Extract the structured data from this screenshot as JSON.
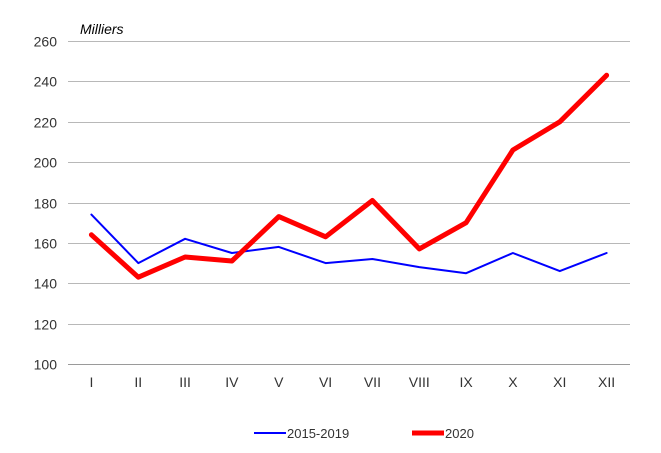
{
  "chart_data": {
    "type": "line",
    "unit_label": "Milliers",
    "categories": [
      "I",
      "II",
      "III",
      "IV",
      "V",
      "VI",
      "VII",
      "VIII",
      "IX",
      "X",
      "XI",
      "XII"
    ],
    "yticks": [
      100,
      120,
      140,
      160,
      180,
      200,
      220,
      240,
      260
    ],
    "ylim": [
      100,
      260
    ],
    "grid": true,
    "legend_position": "bottom",
    "series": [
      {
        "name": "2015-2019",
        "color": "#0000ff",
        "values": [
          174,
          150,
          162,
          155,
          158,
          150,
          152,
          148,
          145,
          155,
          146,
          155
        ]
      },
      {
        "name": "2020",
        "color": "#ff0000",
        "values": [
          164,
          143,
          153,
          151,
          173,
          163,
          181,
          157,
          170,
          206,
          220,
          243
        ]
      }
    ]
  }
}
